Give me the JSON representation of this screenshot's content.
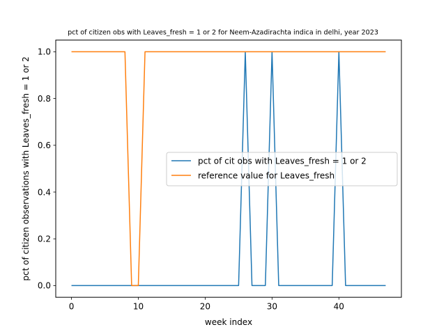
{
  "chart_data": {
    "type": "line",
    "title": "pct of citizen obs with Leaves_fresh = 1 or 2 for Neem-Azadirachta indica in delhi, year 2023",
    "xlabel": "week index",
    "ylabel": "pct of citizen observations with Leaves_fresh = 1 or 2",
    "xlim": [
      -2.35,
      49.35
    ],
    "ylim": [
      -0.05,
      1.05
    ],
    "xticks": [
      0,
      10,
      20,
      30,
      40
    ],
    "yticks": [
      0.0,
      0.2,
      0.4,
      0.6,
      0.8,
      1.0
    ],
    "xtick_labels": [
      "0",
      "10",
      "20",
      "30",
      "40"
    ],
    "ytick_labels": [
      "0.0",
      "0.2",
      "0.4",
      "0.6",
      "0.8",
      "1.0"
    ],
    "grid": false,
    "legend_position": "center-right",
    "x": [
      0,
      1,
      2,
      3,
      4,
      5,
      6,
      7,
      8,
      9,
      10,
      11,
      12,
      13,
      14,
      15,
      16,
      17,
      18,
      19,
      20,
      21,
      22,
      23,
      24,
      25,
      26,
      27,
      28,
      29,
      30,
      31,
      32,
      33,
      34,
      35,
      36,
      37,
      38,
      39,
      40,
      41,
      42,
      43,
      44,
      45,
      46,
      47
    ],
    "series": [
      {
        "name": "pct of cit obs with Leaves_fresh = 1 or 2",
        "color": "#1f77b4",
        "values": [
          0,
          0,
          0,
          0,
          0,
          0,
          0,
          0,
          0,
          0,
          0,
          0,
          0,
          0,
          0,
          0,
          0,
          0,
          0,
          0,
          0,
          0,
          0,
          0,
          0,
          0,
          1,
          0,
          0,
          0,
          1,
          0,
          0,
          0,
          0,
          0,
          0,
          0,
          0,
          0,
          1,
          0,
          0,
          0,
          0,
          0,
          0,
          0
        ]
      },
      {
        "name": "reference value for Leaves_fresh",
        "color": "#ff7f0e",
        "values": [
          1,
          1,
          1,
          1,
          1,
          1,
          1,
          1,
          1,
          0,
          0,
          1,
          1,
          1,
          1,
          1,
          1,
          1,
          1,
          1,
          1,
          1,
          1,
          1,
          1,
          1,
          1,
          1,
          1,
          1,
          1,
          1,
          1,
          1,
          1,
          1,
          1,
          1,
          1,
          1,
          1,
          1,
          1,
          1,
          1,
          1,
          1,
          1
        ]
      }
    ]
  }
}
